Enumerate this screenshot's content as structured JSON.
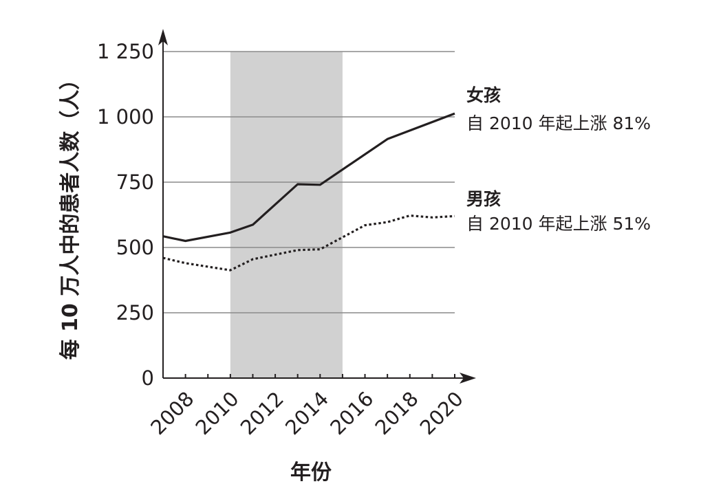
{
  "chart_data": {
    "type": "line",
    "xlabel": "年份",
    "ylabel": "每 10 万人中的患者人数（人）",
    "xlim": [
      2007,
      2020
    ],
    "ylim": [
      0,
      1250
    ],
    "x_ticks": [
      2008,
      2010,
      2012,
      2014,
      2016,
      2018,
      2020
    ],
    "x_tick_labels": [
      "2008",
      "2010",
      "2012",
      "2014",
      "2016",
      "2018",
      "2020"
    ],
    "y_ticks": [
      0,
      250,
      500,
      750,
      1000,
      1250
    ],
    "y_tick_labels": [
      "0",
      "250",
      "500",
      "750",
      "1 000",
      "1 250"
    ],
    "grid": true,
    "shaded_region": {
      "x_start": 2010,
      "x_end": 2015,
      "color": "#d1d1d1"
    },
    "series": [
      {
        "name": "女孩",
        "style": "solid",
        "color": "#231f20",
        "x": [
          2007,
          2008,
          2010,
          2011,
          2013,
          2014,
          2017,
          2020
        ],
        "y": [
          543,
          525,
          557,
          587,
          742,
          740,
          915,
          1013
        ]
      },
      {
        "name": "男孩",
        "style": "dotted",
        "color": "#231f20",
        "x": [
          2007,
          2008,
          2010,
          2011,
          2013,
          2014,
          2016,
          2017,
          2018,
          2019,
          2020
        ],
        "y": [
          460,
          440,
          413,
          455,
          490,
          493,
          585,
          597,
          622,
          615,
          620
        ]
      }
    ],
    "annotations": [
      {
        "title": "女孩",
        "text": "自 2010 年起上涨 81%"
      },
      {
        "title": "男孩",
        "text": "自 2010 年起上涨 51%"
      }
    ]
  }
}
